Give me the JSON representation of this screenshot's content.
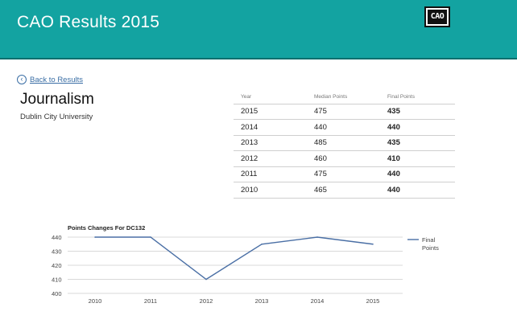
{
  "header": {
    "title": "CAO Results 2015",
    "logo": "CAO"
  },
  "back": {
    "label": "Back to Results",
    "icon": "circle-chevron-left-icon"
  },
  "course": {
    "name": "Journalism",
    "institution": "Dublin City University"
  },
  "table": {
    "headers": [
      "Year",
      "Median Points",
      "Final Points"
    ],
    "rows": [
      [
        "2015",
        "475",
        "435"
      ],
      [
        "2014",
        "440",
        "440"
      ],
      [
        "2013",
        "485",
        "435"
      ],
      [
        "2012",
        "460",
        "410"
      ],
      [
        "2011",
        "475",
        "440"
      ],
      [
        "2010",
        "465",
        "440"
      ]
    ]
  },
  "chart_data": {
    "type": "line",
    "title": "Points Changes For DC132",
    "categories": [
      "2010",
      "2011",
      "2012",
      "2013",
      "2014",
      "2015"
    ],
    "series": [
      {
        "name": "Final Points",
        "values": [
          440,
          440,
          410,
          435,
          440,
          435
        ],
        "color": "#4a6fa5"
      }
    ],
    "ylim": [
      400,
      440
    ],
    "yticks": [
      400,
      410,
      420,
      430,
      440
    ],
    "grid": true,
    "legend": "right"
  },
  "colors": {
    "header": "#13a3a1",
    "link": "#3a6ea5"
  }
}
